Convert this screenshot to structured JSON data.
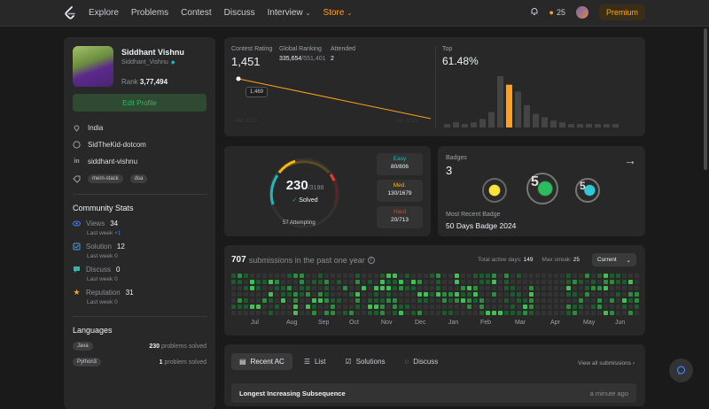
{
  "nav": {
    "items": [
      "Explore",
      "Problems",
      "Contest",
      "Discuss",
      "Interview",
      "Store"
    ],
    "streak": "25",
    "premium": "Premium"
  },
  "profile": {
    "name": "Siddhant Vishnu",
    "username": "Siddhant_Vishnu",
    "rank_label": "Rank",
    "rank": "3,77,494",
    "edit": "Edit Profile",
    "location": "India",
    "github": "SidTheKid-dotcom",
    "linkedin": "siddhant-vishnu",
    "tags": [
      "mern-stack",
      "dsa"
    ]
  },
  "community": {
    "title": "Community Stats",
    "items": [
      {
        "label": "Views",
        "value": "34",
        "sub": "Last week",
        "delta": "+1",
        "color": "#3d82f6"
      },
      {
        "label": "Solution",
        "value": "12",
        "sub": "Last week",
        "delta": "0",
        "color": "#4a9fe0"
      },
      {
        "label": "Discuss",
        "value": "0",
        "sub": "Last week",
        "delta": "0",
        "color": "#2cbbaa"
      },
      {
        "label": "Reputation",
        "value": "31",
        "sub": "Last week",
        "delta": "0",
        "color": "#ffa116"
      }
    ]
  },
  "languages": {
    "title": "Languages",
    "items": [
      {
        "name": "Java",
        "count": "230",
        "suffix": "problems solved"
      },
      {
        "name": "Python3",
        "count": "1",
        "suffix": "problem solved"
      }
    ]
  },
  "contest": {
    "rating_label": "Contest Rating",
    "rating": "1,451",
    "global_label": "Global Ranking",
    "global": "335,654",
    "global_total": "/551,401",
    "attended_label": "Attended",
    "attended": "2",
    "tooltip": "1,469",
    "x_start": "Mar 2023",
    "x_end": "Apr 2023",
    "line": [
      {
        "x": "Mar 2023",
        "y": 1469
      },
      {
        "x": "Apr 2023",
        "y": 1451
      }
    ],
    "top_label": "Top",
    "top": "61.48%",
    "histogram": [
      2,
      3,
      2,
      3,
      5,
      9,
      30,
      25,
      21,
      13,
      8,
      6,
      4,
      3,
      2,
      2,
      2,
      2,
      2,
      2
    ],
    "highlight_index": 7
  },
  "solved": {
    "count": "230",
    "total": "/3198",
    "label": "Solved",
    "attempting": "57 Attempting",
    "easy_label": "Easy",
    "easy": "80/806",
    "medium_label": "Med.",
    "medium": "130/1679",
    "hard_label": "Hard",
    "hard": "20/713"
  },
  "badges": {
    "label": "Badges",
    "count": "3",
    "recent_label": "Most Recent Badge",
    "recent": "50 Days Badge 2024"
  },
  "submissions": {
    "count": "707",
    "text": "submissions in the past one year",
    "active_label": "Total active days:",
    "active": "149",
    "streak_label": "Max streak:",
    "streak": "25",
    "dropdown": "Current",
    "months": [
      "Jul",
      "Aug",
      "Sep",
      "Oct",
      "Nov",
      "Dec",
      "Jan",
      "Feb",
      "Mar",
      "Apr",
      "May",
      "Jun"
    ]
  },
  "recent": {
    "tabs": [
      "Recent AC",
      "List",
      "Solutions",
      "Discuss"
    ],
    "view_all": "View all submissions",
    "first_item": "Longest Increasing Subsequence",
    "first_time": "a minute ago"
  },
  "colors": {
    "accent": "#ffa116",
    "easy": "#1cbaba",
    "medium": "#ffb700",
    "hard": "#f63737",
    "green": "#2cbb5d"
  }
}
